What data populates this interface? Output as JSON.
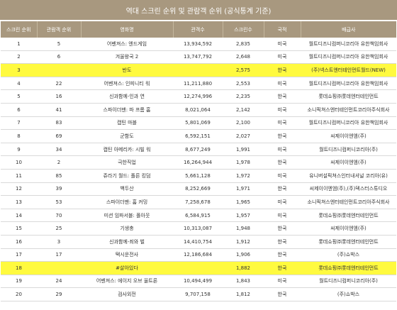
{
  "title": "역대 스크린 순위 및 관람객 순위 (공식통계 기준)",
  "highlight_color": "#fffa3f",
  "header_color": "#a8987f",
  "columns": [
    "스크린 순위",
    "관람객 순위",
    "영화명",
    "관객수",
    "스크린수",
    "국적",
    "배급사"
  ],
  "rows": [
    {
      "screen_rank": "1",
      "audience_rank": "5",
      "title": "어벤져스: 엔드게임",
      "audience": "13,934,592",
      "screens": "2,835",
      "country": "미국",
      "distributor": "월트디즈니컴퍼니코리아 유한책임회사",
      "highlight": false
    },
    {
      "screen_rank": "2",
      "audience_rank": "6",
      "title": "겨울왕국 2",
      "audience": "13,747,792",
      "screens": "2,648",
      "country": "미국",
      "distributor": "월트디즈니컴퍼니코리아 유한책임회사",
      "highlight": false
    },
    {
      "screen_rank": "3",
      "audience_rank": "",
      "title": "반도",
      "audience": "",
      "screens": "2,575",
      "country": "한국",
      "distributor": "(주)넥스트엔터테인먼트월드(NEW)",
      "highlight": true
    },
    {
      "screen_rank": "4",
      "audience_rank": "22",
      "title": "어벤져스: 인피니티 워",
      "audience": "11,211,880",
      "screens": "2,553",
      "country": "미국",
      "distributor": "월트디즈니컴퍼니코리아 유한책임회사",
      "highlight": false
    },
    {
      "screen_rank": "5",
      "audience_rank": "16",
      "title": "신과함께-인과 연",
      "audience": "12,274,996",
      "screens": "2,235",
      "country": "한국",
      "distributor": "롯데쇼핑㈜롯데엔터테인먼트",
      "highlight": false
    },
    {
      "screen_rank": "6",
      "audience_rank": "41",
      "title": "스파이더맨: 파 프롬 홈",
      "audience": "8,021,064",
      "screens": "2,142",
      "country": "미국",
      "distributor": "소니픽쳐스엔터테인먼트코리아주식회사",
      "highlight": false
    },
    {
      "screen_rank": "7",
      "audience_rank": "83",
      "title": "캡틴 마블",
      "audience": "5,801,069",
      "screens": "2,100",
      "country": "미국",
      "distributor": "월트디즈니컴퍼니코리아 유한책임회사",
      "highlight": false
    },
    {
      "screen_rank": "8",
      "audience_rank": "69",
      "title": "군함도",
      "audience": "6,592,151",
      "screens": "2,027",
      "country": "한국",
      "distributor": "씨제이이엔엠(주)",
      "highlight": false
    },
    {
      "screen_rank": "9",
      "audience_rank": "34",
      "title": "캡틴 아메리카: 시빌 워",
      "audience": "8,677,249",
      "screens": "1,991",
      "country": "미국",
      "distributor": "월트디즈니컴퍼니코리아(주)",
      "highlight": false
    },
    {
      "screen_rank": "10",
      "audience_rank": "2",
      "title": "극한직업",
      "audience": "16,264,944",
      "screens": "1,978",
      "country": "한국",
      "distributor": "씨제이이엔엠(주)",
      "highlight": false
    },
    {
      "screen_rank": "11",
      "audience_rank": "85",
      "title": "쥬라기 월드: 폴른 킹덤",
      "audience": "5,661,128",
      "screens": "1,972",
      "country": "미국",
      "distributor": "유니버설픽쳐스인터내셔널 코리아(유)",
      "highlight": false
    },
    {
      "screen_rank": "12",
      "audience_rank": "39",
      "title": "백두산",
      "audience": "8,252,669",
      "screens": "1,971",
      "country": "한국",
      "distributor": "씨제이이엔엠(주),(주)덱스터스튜디오",
      "highlight": false
    },
    {
      "screen_rank": "13",
      "audience_rank": "53",
      "title": "스파이더맨: 홈 커밍",
      "audience": "7,258,678",
      "screens": "1,965",
      "country": "미국",
      "distributor": "소니픽쳐스엔터테인먼트코리아주식회사",
      "highlight": false
    },
    {
      "screen_rank": "14",
      "audience_rank": "70",
      "title": "미션 임파서블: 폴아웃",
      "audience": "6,584,915",
      "screens": "1,957",
      "country": "미국",
      "distributor": "롯데쇼핑㈜롯데엔터테인먼트",
      "highlight": false
    },
    {
      "screen_rank": "15",
      "audience_rank": "25",
      "title": "기생충",
      "audience": "10,313,087",
      "screens": "1,948",
      "country": "한국",
      "distributor": "씨제이이엔엠(주)",
      "highlight": false
    },
    {
      "screen_rank": "16",
      "audience_rank": "3",
      "title": "신과함께-죄와 벌",
      "audience": "14,410,754",
      "screens": "1,912",
      "country": "한국",
      "distributor": "롯데쇼핑㈜롯데엔터테인먼트",
      "highlight": false
    },
    {
      "screen_rank": "17",
      "audience_rank": "17",
      "title": "택시운전사",
      "audience": "12,186,684",
      "screens": "1,906",
      "country": "한국",
      "distributor": "(주)쇼박스",
      "highlight": false
    },
    {
      "screen_rank": "18",
      "audience_rank": "",
      "title": "#살아있다",
      "audience": "",
      "screens": "1,882",
      "country": "한국",
      "distributor": "롯데쇼핑㈜롯데엔터테인먼트",
      "highlight": true
    },
    {
      "screen_rank": "19",
      "audience_rank": "24",
      "title": "어벤져스: 에이지 오브 울트론",
      "audience": "10,494,499",
      "screens": "1,843",
      "country": "미국",
      "distributor": "월트디즈니컴퍼니코리아(주)",
      "highlight": false
    },
    {
      "screen_rank": "20",
      "audience_rank": "29",
      "title": "검사외전",
      "audience": "9,707,158",
      "screens": "1,812",
      "country": "한국",
      "distributor": "(주)쇼박스",
      "highlight": false
    }
  ]
}
